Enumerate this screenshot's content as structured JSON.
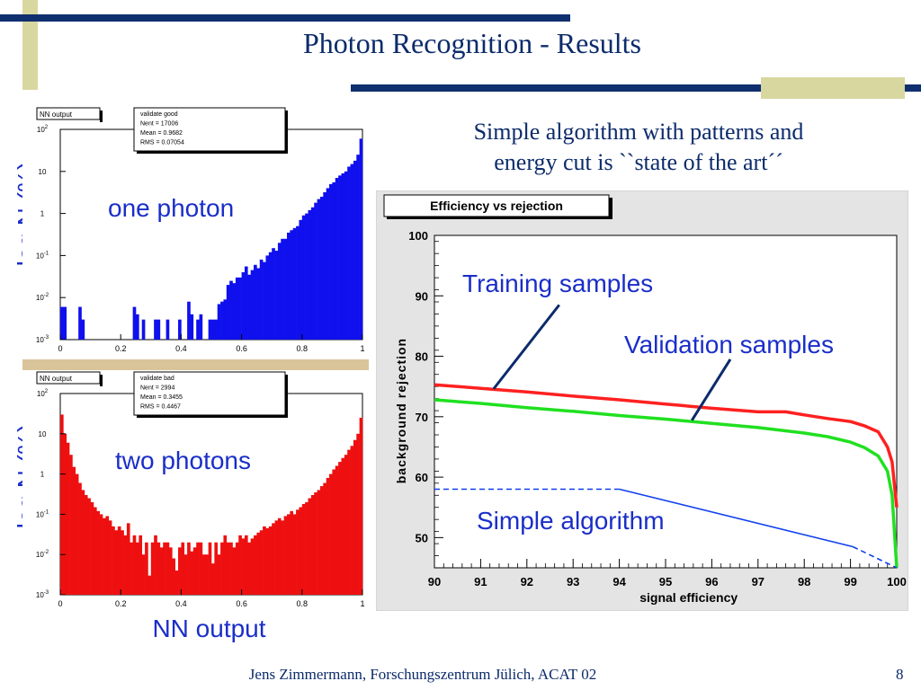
{
  "slide": {
    "title": "Photon Recognition - Results",
    "subtitle_line1": "Simple algorithm with patterns and",
    "subtitle_line2": "energy cut is ``state of the art´´",
    "footer": "Jens Zimmermann, Forschungszentrum Jülich, ACAT 02",
    "page_number": "8",
    "hist_ylabel": "log N (%)",
    "hist_xlabel": "NN output",
    "colors": {
      "title": "#0c2b6b",
      "label": "#1a2ec8",
      "bar_navy": "#0f2f6e",
      "bar_khaki": "#d9d7a0"
    }
  },
  "chart_data": [
    {
      "type": "bar",
      "title": "NN output",
      "label": "one photon",
      "color": "#1010ee",
      "stats": [
        "validate good",
        "Nent = 17006",
        "Mean  = 0.9682",
        "RMS   = 0.07054"
      ],
      "x_range": [
        0,
        1
      ],
      "y_scale": "log",
      "ylim": [
        0.001,
        100
      ],
      "x_ticks": [
        "0",
        "0.2",
        "0.4",
        "0.6",
        "0.8",
        "1"
      ],
      "y_ticks": [
        "10^-3",
        "10^-2",
        "10^-1",
        "1",
        "10",
        "10^2"
      ],
      "values": [
        0.006,
        0.006,
        0.001,
        0.001,
        0.001,
        0.001,
        0.006,
        0.003,
        0.001,
        0.001,
        0.001,
        0.001,
        0.001,
        0.001,
        0.001,
        0.001,
        0.001,
        0.001,
        0.001,
        0.001,
        0.001,
        0.001,
        0.001,
        0.001,
        0.006,
        0.004,
        0.001,
        0.003,
        0.001,
        0.001,
        0.001,
        0.003,
        0.003,
        0.001,
        0.001,
        0.003,
        0.001,
        0.001,
        0.001,
        0.003,
        0.001,
        0.001,
        0.008,
        0.004,
        0.001,
        0.003,
        0.004,
        0.001,
        0.001,
        0.003,
        0.003,
        0.003,
        0.007,
        0.008,
        0.009,
        0.02,
        0.025,
        0.022,
        0.03,
        0.03,
        0.04,
        0.055,
        0.035,
        0.045,
        0.06,
        0.05,
        0.08,
        0.07,
        0.1,
        0.12,
        0.15,
        0.13,
        0.2,
        0.25,
        0.25,
        0.35,
        0.4,
        0.45,
        0.5,
        0.7,
        0.9,
        1,
        1.2,
        1.4,
        1.8,
        2.2,
        2.5,
        3.2,
        4,
        5,
        5.5,
        7,
        8,
        9,
        10,
        13,
        15,
        18,
        25,
        60
      ]
    },
    {
      "type": "bar",
      "title": "NN output",
      "label": "two photons",
      "color": "#ee1010",
      "stats": [
        "validate bad",
        "Nent = 2994",
        "Mean  = 0.3455",
        "RMS   = 0.4467"
      ],
      "x_range": [
        0,
        1
      ],
      "y_scale": "log",
      "ylim": [
        0.001,
        100
      ],
      "x_ticks": [
        "0",
        "0.2",
        "0.4",
        "0.6",
        "0.8",
        "1"
      ],
      "y_ticks": [
        "10^-3",
        "10^-2",
        "10^-1",
        "1",
        "10",
        "10^2"
      ],
      "values": [
        30,
        10,
        6,
        3,
        1.5,
        1,
        0.6,
        0.4,
        0.3,
        0.25,
        0.2,
        0.15,
        0.12,
        0.1,
        0.08,
        0.09,
        0.07,
        0.05,
        0.04,
        0.05,
        0.04,
        0.03,
        0.06,
        0.02,
        0.03,
        0.02,
        0.03,
        0.01,
        0.02,
        0.003,
        0.02,
        0.03,
        0.02,
        0.015,
        0.02,
        0.02,
        0.015,
        0.008,
        0.004,
        0.015,
        0.02,
        0.01,
        0.02,
        0.012,
        0.015,
        0.02,
        0.02,
        0.01,
        0.01,
        0.02,
        0.006,
        0.02,
        0.01,
        0.02,
        0.03,
        0.02,
        0.02,
        0.015,
        0.02,
        0.03,
        0.025,
        0.03,
        0.02,
        0.025,
        0.03,
        0.035,
        0.04,
        0.05,
        0.045,
        0.05,
        0.06,
        0.07,
        0.08,
        0.07,
        0.09,
        0.1,
        0.12,
        0.1,
        0.13,
        0.15,
        0.18,
        0.2,
        0.25,
        0.3,
        0.35,
        0.4,
        0.5,
        0.6,
        0.8,
        1,
        1.3,
        1.6,
        2,
        2.5,
        3,
        4,
        5,
        7,
        10,
        25
      ]
    },
    {
      "type": "line",
      "title": "Efficiency vs rejection",
      "xlabel": "signal efficiency",
      "ylabel": "background rejection",
      "xlim": [
        90,
        100
      ],
      "ylim": [
        45,
        100
      ],
      "x_ticks": [
        90,
        91,
        92,
        93,
        94,
        95,
        96,
        97,
        98,
        99,
        100
      ],
      "y_ticks": [
        50,
        60,
        70,
        80,
        90,
        100
      ],
      "series": [
        {
          "name": "Training samples",
          "color": "#ff2020",
          "x": [
            90,
            91,
            92,
            93,
            94,
            95,
            96,
            97,
            97.6,
            98,
            98.5,
            99,
            99.3,
            99.6,
            99.8,
            99.9,
            100
          ],
          "y": [
            75.3,
            74.7,
            74.1,
            73.4,
            72.8,
            72.1,
            71.4,
            70.8,
            70.8,
            70.3,
            69.7,
            69.2,
            68.5,
            67.5,
            65.0,
            62.5,
            55.0
          ]
        },
        {
          "name": "Validation samples",
          "color": "#20e020",
          "x": [
            90,
            91,
            92,
            93,
            94,
            95,
            96,
            97,
            98,
            98.5,
            99,
            99.3,
            99.6,
            99.8,
            99.9,
            100
          ],
          "y": [
            72.8,
            72.2,
            71.5,
            70.9,
            70.2,
            69.6,
            68.9,
            68.2,
            67.3,
            66.7,
            65.8,
            64.9,
            63.5,
            61.0,
            57.0,
            45.0
          ]
        },
        {
          "name": "Simple algorithm",
          "color": "#1040ee",
          "segments": [
            {
              "style": "dashed",
              "x": [
                90,
                94
              ],
              "y": [
                58,
                58
              ]
            },
            {
              "style": "solid",
              "x": [
                94,
                99.05
              ],
              "y": [
                58,
                48.5
              ]
            },
            {
              "style": "dashed",
              "x": [
                99.05,
                100
              ],
              "y": [
                48.5,
                45
              ]
            }
          ]
        }
      ],
      "annotations": [
        "Training samples",
        "Validation samples",
        "Simple algorithm"
      ],
      "grid": true
    }
  ]
}
